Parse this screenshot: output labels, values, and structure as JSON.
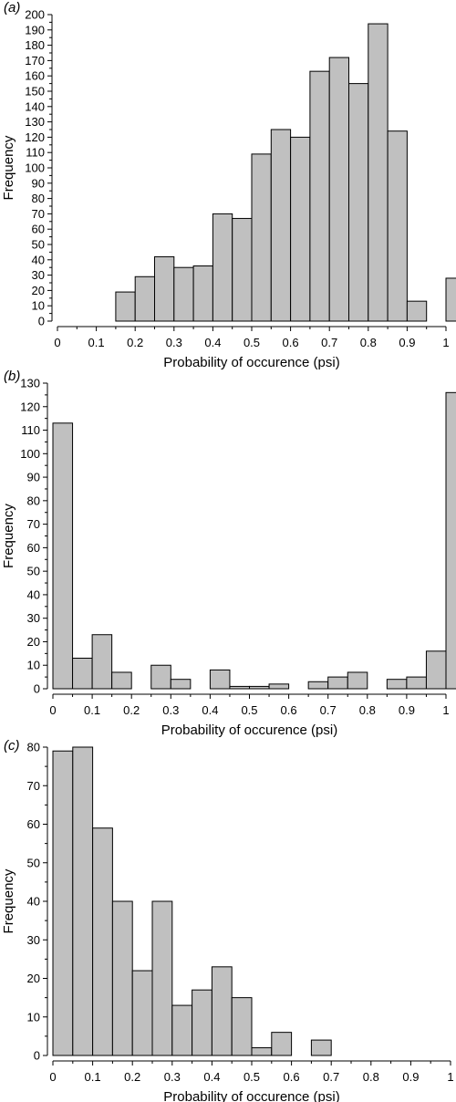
{
  "colors": {
    "bar_fill": "#c0c0c0",
    "bar_stroke": "#000000",
    "axis": "#000000",
    "background": "#ffffff"
  },
  "chart_data": [
    {
      "panel_label": "(a)",
      "type": "bar",
      "xlabel": "Probability of occurence (psi)",
      "ylabel": "Frequency",
      "ylim": [
        0,
        200
      ],
      "xlim": [
        0,
        1
      ],
      "yticks": [
        0,
        10,
        20,
        30,
        40,
        50,
        60,
        70,
        80,
        90,
        100,
        110,
        120,
        130,
        140,
        150,
        160,
        170,
        180,
        190,
        200
      ],
      "xticks": [
        0,
        0.1,
        0.2,
        0.3,
        0.4,
        0.5,
        0.6,
        0.7,
        0.8,
        0.9,
        1
      ],
      "xtick_labels": [
        "0",
        "0.1",
        "0.2",
        "0.3",
        "0.4",
        "0.5",
        "0.6",
        "0.7",
        "0.8",
        "0.9",
        "1"
      ],
      "bin_edges": [
        0,
        0.05,
        0.1,
        0.15,
        0.2,
        0.25,
        0.3,
        0.35,
        0.4,
        0.45,
        0.5,
        0.55,
        0.6,
        0.65,
        0.7,
        0.75,
        0.8,
        0.85,
        0.9,
        0.95,
        1.0,
        1.05
      ],
      "values": [
        0,
        0,
        0,
        19,
        29,
        42,
        35,
        36,
        70,
        67,
        109,
        125,
        120,
        163,
        172,
        155,
        194,
        124,
        13,
        0,
        28
      ],
      "grid": false
    },
    {
      "panel_label": "(b)",
      "type": "bar",
      "xlabel": "Probability of occurence (psi)",
      "ylabel": "Frequency",
      "ylim": [
        0,
        130
      ],
      "xlim": [
        0,
        1
      ],
      "yticks": [
        0,
        10,
        20,
        30,
        40,
        50,
        60,
        70,
        80,
        90,
        100,
        110,
        120,
        130
      ],
      "xticks": [
        0,
        0.1,
        0.2,
        0.3,
        0.4,
        0.5,
        0.6,
        0.7,
        0.8,
        0.9,
        1
      ],
      "xtick_labels": [
        "0",
        "0.1",
        "0.2",
        "0.3",
        "0.4",
        "0.5",
        "0.6",
        "0.7",
        "0.8",
        "0.9",
        "1"
      ],
      "bin_edges": [
        0,
        0.05,
        0.1,
        0.15,
        0.2,
        0.25,
        0.3,
        0.35,
        0.4,
        0.45,
        0.5,
        0.55,
        0.6,
        0.65,
        0.7,
        0.75,
        0.8,
        0.85,
        0.9,
        0.95,
        1.0,
        1.05
      ],
      "values": [
        113,
        13,
        23,
        7,
        0,
        10,
        4,
        0,
        8,
        1,
        1,
        2,
        0,
        3,
        5,
        7,
        0,
        4,
        5,
        16,
        126
      ],
      "grid": false
    },
    {
      "panel_label": "(c)",
      "type": "bar",
      "xlabel": "Probability of occurence (psi)",
      "ylabel": "Frequency",
      "ylim": [
        0,
        80
      ],
      "xlim": [
        0,
        1
      ],
      "yticks": [
        0,
        10,
        20,
        30,
        40,
        50,
        60,
        70,
        80
      ],
      "xticks": [
        0,
        0.1,
        0.2,
        0.3,
        0.4,
        0.5,
        0.6,
        0.7,
        0.8,
        0.9,
        1
      ],
      "xtick_labels": [
        "0",
        "0.1",
        "0.2",
        "0.3",
        "0.4",
        "0.5",
        "0.6",
        "0.7",
        "0.8",
        "0.9",
        "1"
      ],
      "bin_edges": [
        0,
        0.05,
        0.1,
        0.15,
        0.2,
        0.25,
        0.3,
        0.35,
        0.4,
        0.45,
        0.5,
        0.55,
        0.6,
        0.65,
        0.7,
        0.75,
        0.8,
        0.85,
        0.9,
        0.95,
        1.0
      ],
      "values": [
        79,
        80,
        59,
        40,
        22,
        40,
        13,
        17,
        23,
        15,
        2,
        6,
        0,
        4,
        0,
        0,
        0,
        0,
        0,
        0
      ],
      "grid": false
    }
  ]
}
